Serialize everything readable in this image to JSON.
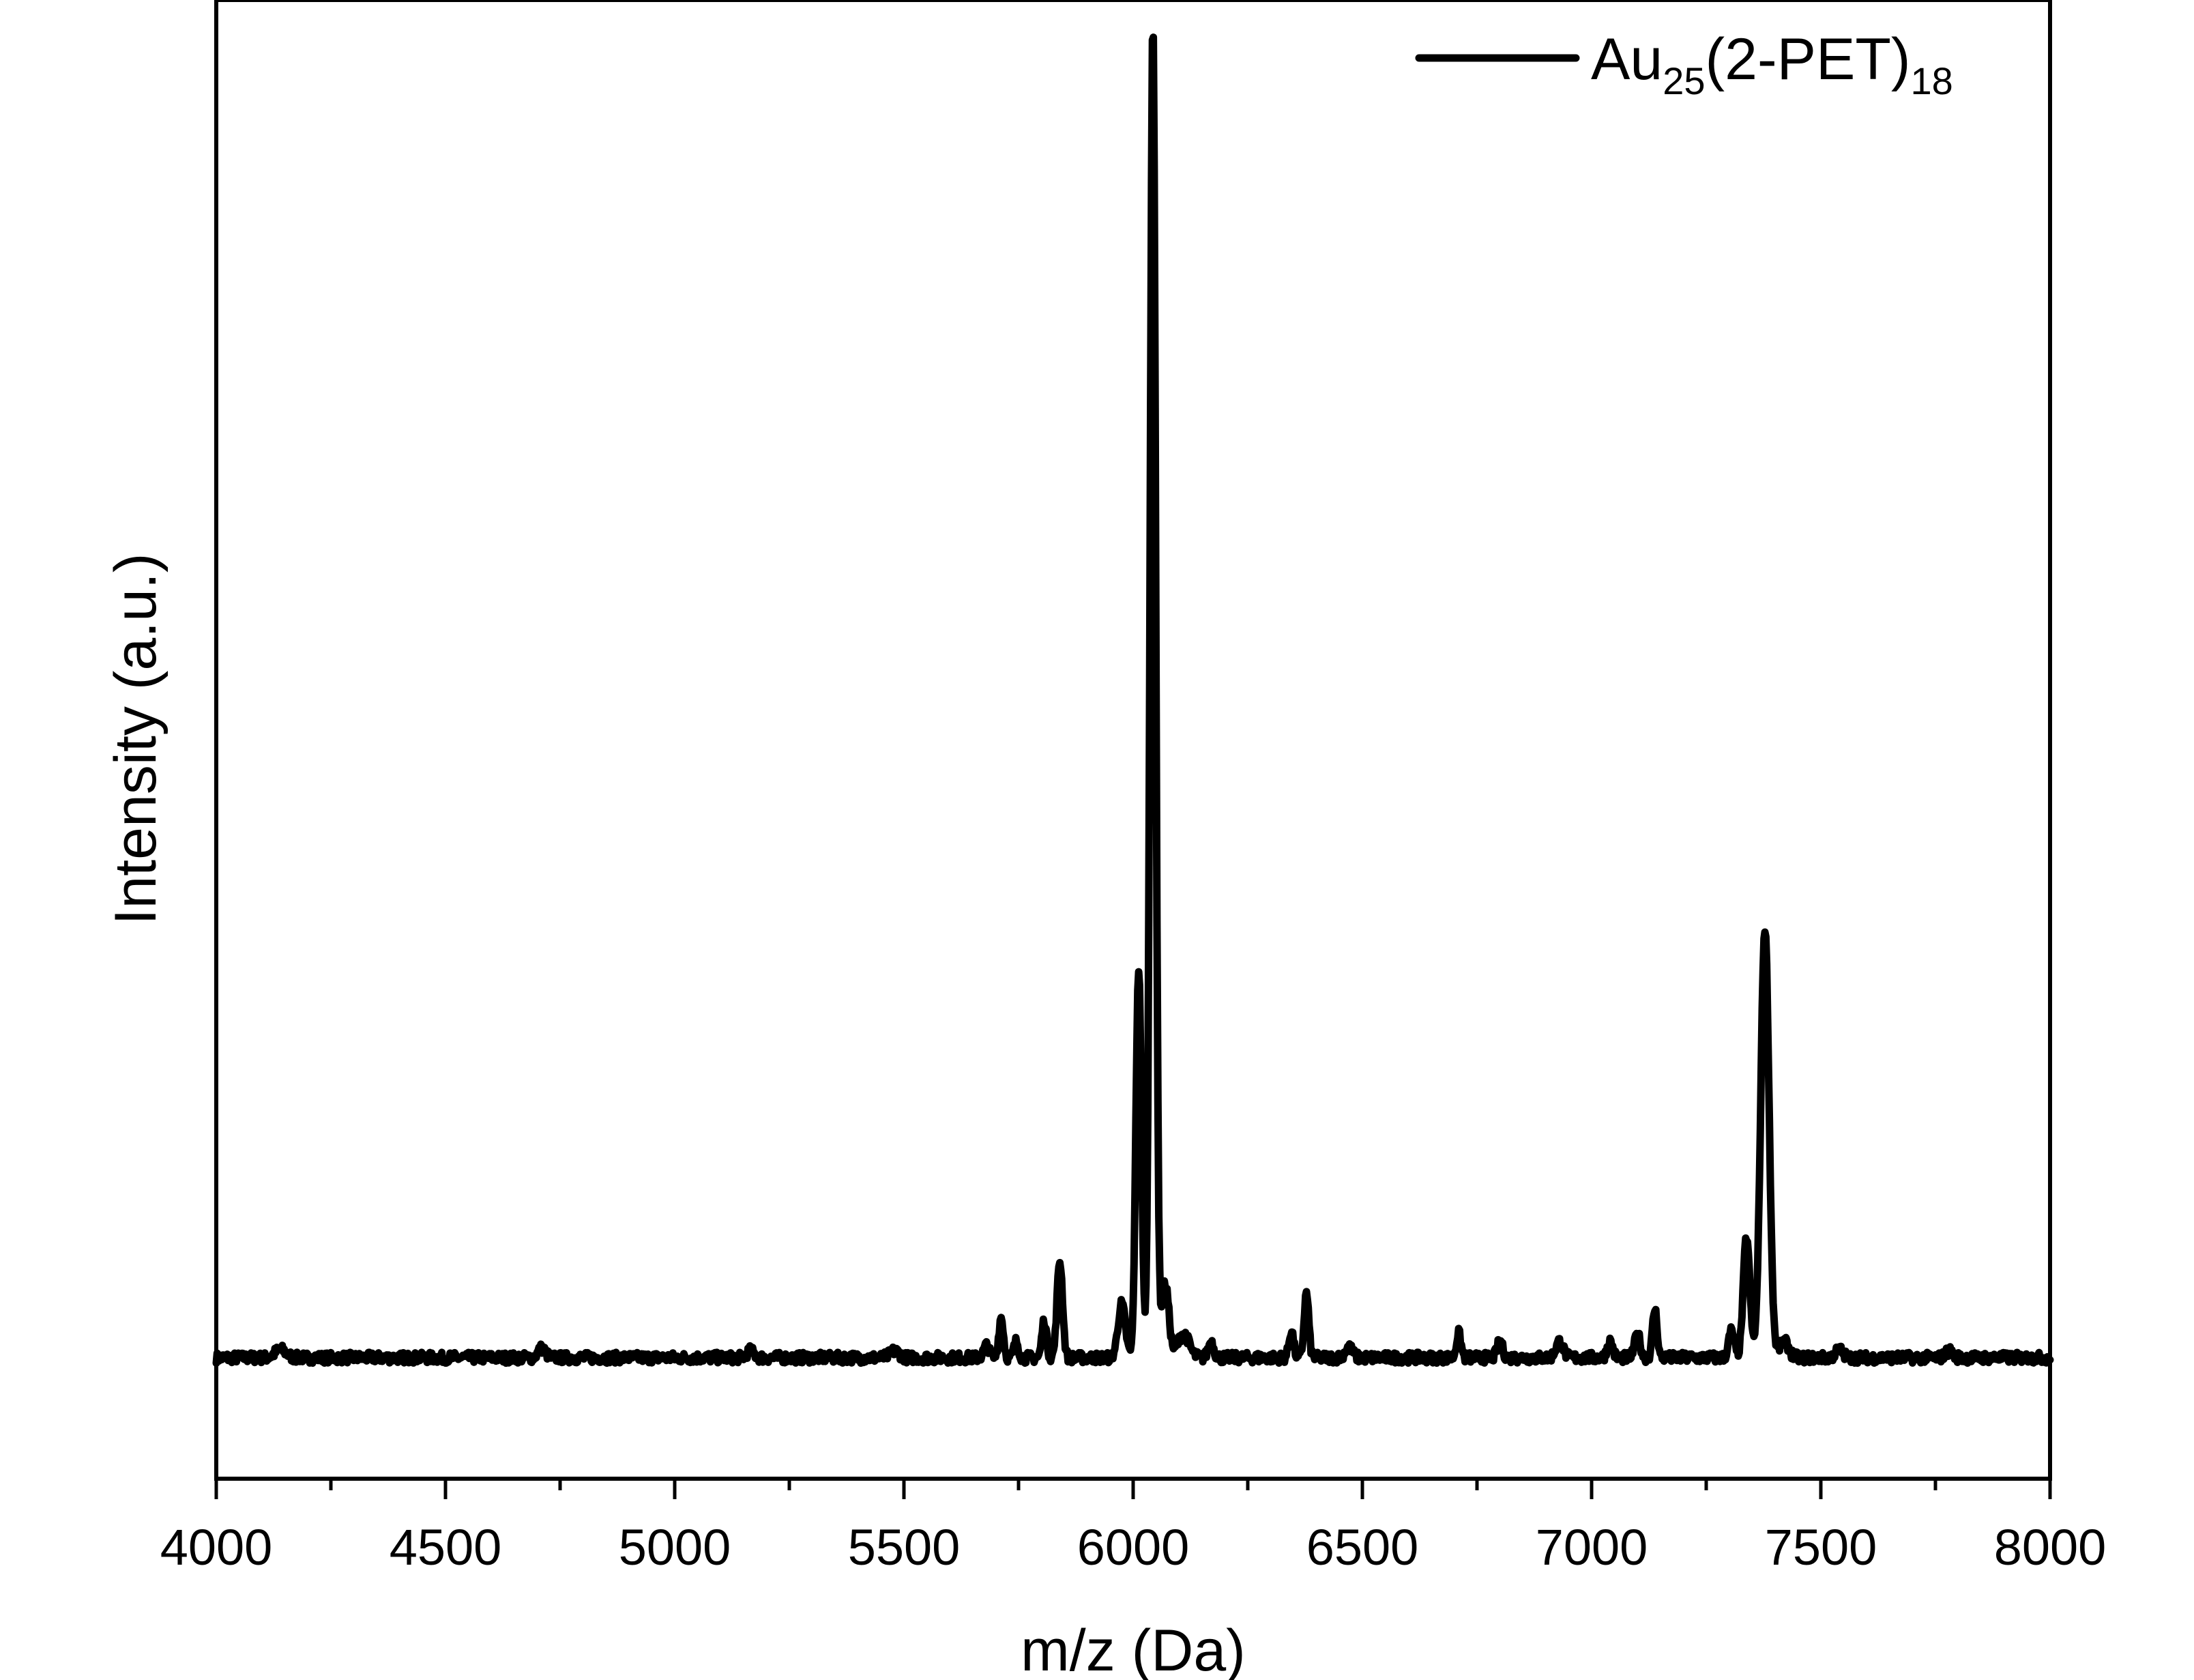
{
  "chart_data": {
    "type": "line",
    "xlabel": "m/z (Da)",
    "ylabel": "Intensity (a.u.)",
    "xlim": [
      4000,
      8000
    ],
    "ylim": [
      -0.09,
      1.01
    ],
    "x_ticks": [
      4000,
      4500,
      5000,
      5500,
      6000,
      6500,
      7000,
      7500,
      8000
    ],
    "x_minor_step": 250,
    "y_tick_labels": false,
    "grid": false,
    "legend_position": "top-right",
    "series": [
      {
        "name_parts": {
          "base": "Au",
          "sub1": "25",
          "mid": "(2-PET)",
          "sub2": "18"
        },
        "color": "#000000",
        "baseline": 0.0,
        "noise_amplitude": 0.004,
        "peaks": [
          {
            "x": 4140,
            "y": 0.006,
            "width": 12
          },
          {
            "x": 4710,
            "y": 0.007,
            "width": 8
          },
          {
            "x": 5165,
            "y": 0.005,
            "width": 8
          },
          {
            "x": 5480,
            "y": 0.005,
            "width": 10
          },
          {
            "x": 5680,
            "y": 0.009,
            "width": 6
          },
          {
            "x": 5712,
            "y": 0.03,
            "width": 5
          },
          {
            "x": 5745,
            "y": 0.012,
            "width": 5
          },
          {
            "x": 5806,
            "y": 0.028,
            "width": 5
          },
          {
            "x": 5840,
            "y": 0.072,
            "width": 6
          },
          {
            "x": 5975,
            "y": 0.04,
            "width": 8
          },
          {
            "x": 6012,
            "y": 0.29,
            "width": 6
          },
          {
            "x": 6043,
            "y": 0.996,
            "width": 6
          },
          {
            "x": 6070,
            "y": 0.055,
            "width": 8
          },
          {
            "x": 6110,
            "y": 0.018,
            "width": 12
          },
          {
            "x": 6170,
            "y": 0.012,
            "width": 6
          },
          {
            "x": 6345,
            "y": 0.02,
            "width": 5
          },
          {
            "x": 6378,
            "y": 0.048,
            "width": 5
          },
          {
            "x": 6470,
            "y": 0.008,
            "width": 8
          },
          {
            "x": 6710,
            "y": 0.018,
            "width": 5
          },
          {
            "x": 6800,
            "y": 0.012,
            "width": 6
          },
          {
            "x": 6930,
            "y": 0.012,
            "width": 8
          },
          {
            "x": 7040,
            "y": 0.012,
            "width": 6
          },
          {
            "x": 7100,
            "y": 0.018,
            "width": 6
          },
          {
            "x": 7138,
            "y": 0.036,
            "width": 5
          },
          {
            "x": 7305,
            "y": 0.02,
            "width": 6
          },
          {
            "x": 7338,
            "y": 0.09,
            "width": 7
          },
          {
            "x": 7378,
            "y": 0.32,
            "width": 9
          },
          {
            "x": 7420,
            "y": 0.012,
            "width": 10
          },
          {
            "x": 7540,
            "y": 0.006,
            "width": 8
          },
          {
            "x": 7780,
            "y": 0.005,
            "width": 8
          }
        ]
      }
    ]
  }
}
